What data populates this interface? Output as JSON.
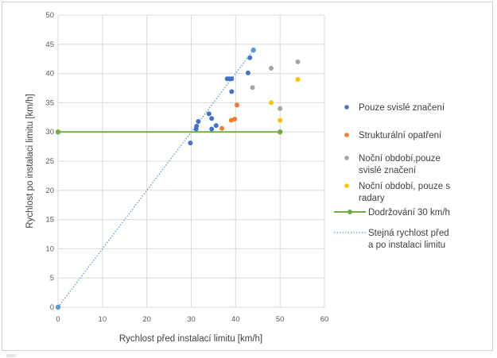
{
  "chart_data": {
    "type": "scatter",
    "xlabel": "Rychlost před instalací limitu [km/h]",
    "ylabel": "Rychlost po instalaci limitu [km/h]",
    "xlim": [
      0,
      60
    ],
    "ylim": [
      0,
      50
    ],
    "xticks": [
      "0",
      "10",
      "20",
      "30",
      "40",
      "50",
      "60"
    ],
    "yticks": [
      "0",
      "5",
      "10",
      "15",
      "20",
      "25",
      "30",
      "35",
      "40",
      "45",
      "50"
    ],
    "grid": true,
    "legend_position": "right",
    "series": [
      {
        "name": "Pouze svislé značení",
        "kind": "scatter",
        "color": "#4472C4",
        "points": [
          [
            29.8,
            28.1
          ],
          [
            31.1,
            30.5
          ],
          [
            31.2,
            31.0
          ],
          [
            31.6,
            31.8
          ],
          [
            34.0,
            33.1
          ],
          [
            34.6,
            32.3
          ],
          [
            34.6,
            30.5
          ],
          [
            35.6,
            31.1
          ],
          [
            38.1,
            39.1
          ],
          [
            38.6,
            39.1
          ],
          [
            39.1,
            39.1
          ],
          [
            39.1,
            36.9
          ],
          [
            42.8,
            40.1
          ],
          [
            43.2,
            42.7
          ],
          [
            44.0,
            44.0
          ]
        ]
      },
      {
        "name": "Strukturální opatření",
        "kind": "scatter",
        "color": "#ED7D31",
        "points": [
          [
            36.9,
            30.6
          ],
          [
            39.0,
            32.0
          ],
          [
            39.8,
            32.2
          ],
          [
            40.3,
            34.6
          ]
        ]
      },
      {
        "name": "Noční období,pouze svislé značení",
        "kind": "scatter",
        "color": "#A5A5A5",
        "points": [
          [
            43.8,
            37.6
          ],
          [
            48.0,
            40.9
          ],
          [
            50.0,
            34.0
          ],
          [
            54.0,
            42.0
          ]
        ]
      },
      {
        "name": "Noční období, pouze s radary",
        "kind": "scatter",
        "color": "#FFC000",
        "points": [
          [
            48.0,
            35.0
          ],
          [
            50.0,
            32.0
          ],
          [
            54.0,
            39.0
          ]
        ]
      },
      {
        "name": "Dodržování 30 km/h",
        "kind": "line",
        "color": "#70AD47",
        "points": [
          [
            0,
            30
          ],
          [
            50,
            30
          ]
        ]
      },
      {
        "name": "Stejná rychlost před a po instalaci limitu",
        "kind": "dotted-line",
        "color": "#5B9BD5",
        "points": [
          [
            0,
            0
          ],
          [
            44,
            44
          ]
        ]
      }
    ]
  }
}
